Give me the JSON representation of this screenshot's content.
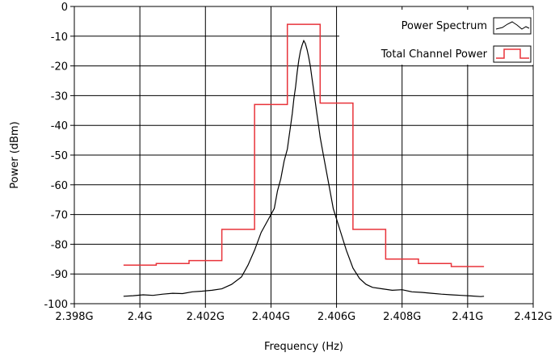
{
  "chart_data": {
    "type": "line",
    "xlabel": "Frequency (Hz)",
    "ylabel": "Power (dBm)",
    "xlim": [
      2.398,
      2.412
    ],
    "ylim": [
      -100,
      0
    ],
    "x_unit": "GHz",
    "x_ticks": [
      {
        "value": 2.398,
        "label": "2.398G"
      },
      {
        "value": 2.4,
        "label": "2.4G"
      },
      {
        "value": 2.402,
        "label": "2.402G"
      },
      {
        "value": 2.404,
        "label": "2.404G"
      },
      {
        "value": 2.406,
        "label": "2.406G"
      },
      {
        "value": 2.408,
        "label": "2.408G"
      },
      {
        "value": 2.41,
        "label": "2.41G"
      },
      {
        "value": 2.412,
        "label": "2.412G"
      }
    ],
    "y_ticks": [
      {
        "value": 0,
        "label": "0"
      },
      {
        "value": -10,
        "label": "-10"
      },
      {
        "value": -20,
        "label": "-20"
      },
      {
        "value": -30,
        "label": "-30"
      },
      {
        "value": -40,
        "label": "-40"
      },
      {
        "value": -50,
        "label": "-50"
      },
      {
        "value": -60,
        "label": "-60"
      },
      {
        "value": -70,
        "label": "-70"
      },
      {
        "value": -80,
        "label": "-80"
      },
      {
        "value": -90,
        "label": "-90"
      },
      {
        "value": -100,
        "label": "-100"
      }
    ],
    "grid": true,
    "legend_position": "top-right",
    "series": [
      {
        "name": "Power Spectrum",
        "color": "#000000",
        "style": "line",
        "x": [
          2.3995,
          2.3998,
          2.4001,
          2.4004,
          2.4007,
          2.401,
          2.4013,
          2.4016,
          2.4019,
          2.4022,
          2.4025,
          2.4028,
          2.4031,
          2.4033,
          2.4035,
          2.4037,
          2.4039,
          2.4041,
          2.4042,
          2.4043,
          2.4044,
          2.4045,
          2.40455,
          2.4046,
          2.40465,
          2.4047,
          2.40475,
          2.4048,
          2.40485,
          2.4049,
          2.40495,
          2.405,
          2.40505,
          2.4051,
          2.40515,
          2.4052,
          2.40525,
          2.4053,
          2.40535,
          2.4054,
          2.40545,
          2.4055,
          2.4056,
          2.4057,
          2.4058,
          2.4059,
          2.4061,
          2.4063,
          2.4065,
          2.4067,
          2.4069,
          2.4071,
          2.4074,
          2.4077,
          2.408,
          2.4083,
          2.4086,
          2.4089,
          2.4092,
          2.4095,
          2.4098,
          2.4101,
          2.4104,
          2.4105
        ],
        "values": [
          -97.5,
          -97.3,
          -97.0,
          -97.2,
          -96.8,
          -96.5,
          -96.6,
          -96.0,
          -95.8,
          -95.5,
          -95.0,
          -93.5,
          -91.0,
          -87.0,
          -82.0,
          -76.0,
          -72.0,
          -68.0,
          -62.0,
          -58.0,
          -52.0,
          -48.0,
          -44.0,
          -40.0,
          -36.0,
          -31.0,
          -27.0,
          -22.0,
          -18.0,
          -15.0,
          -13.0,
          -11.5,
          -12.5,
          -14.5,
          -17.0,
          -20.0,
          -24.0,
          -28.0,
          -32.0,
          -36.0,
          -40.0,
          -44.0,
          -50.0,
          -56.0,
          -62.0,
          -68.0,
          -75.0,
          -82.0,
          -88.0,
          -91.5,
          -93.5,
          -94.5,
          -95.0,
          -95.5,
          -95.3,
          -96.0,
          -96.2,
          -96.5,
          -96.8,
          -97.0,
          -97.2,
          -97.4,
          -97.6,
          -97.5
        ]
      },
      {
        "name": "Total Channel Power",
        "color": "#e8333a",
        "style": "step",
        "steps": [
          {
            "x0": 2.3995,
            "x1": 2.4005,
            "value": -87.0
          },
          {
            "x0": 2.4005,
            "x1": 2.4015,
            "value": -86.5
          },
          {
            "x0": 2.4015,
            "x1": 2.4025,
            "value": -85.5
          },
          {
            "x0": 2.4025,
            "x1": 2.4035,
            "value": -75.0
          },
          {
            "x0": 2.4035,
            "x1": 2.4045,
            "value": -33.0
          },
          {
            "x0": 2.4045,
            "x1": 2.4055,
            "value": -6.0
          },
          {
            "x0": 2.4055,
            "x1": 2.4065,
            "value": -32.5
          },
          {
            "x0": 2.4065,
            "x1": 2.4075,
            "value": -75.0
          },
          {
            "x0": 2.4075,
            "x1": 2.4085,
            "value": -85.0
          },
          {
            "x0": 2.4085,
            "x1": 2.4095,
            "value": -86.5
          },
          {
            "x0": 2.4095,
            "x1": 2.4105,
            "value": -87.5
          }
        ]
      }
    ]
  }
}
